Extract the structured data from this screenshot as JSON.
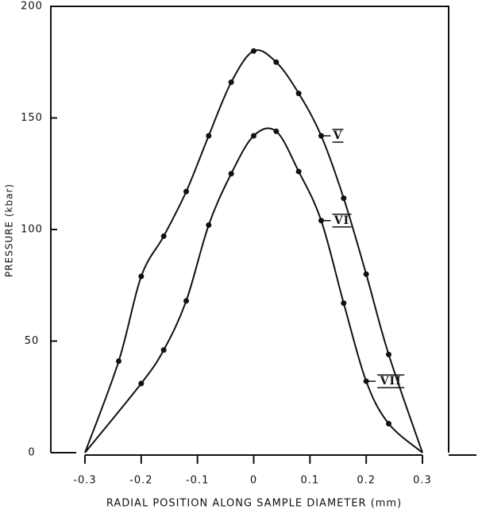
{
  "chart_data": {
    "type": "line",
    "xlabel": "RADIAL POSITION ALONG SAMPLE DIAMETER (mm)",
    "ylabel": "PRESSURE (kbar)",
    "xlim": [
      -0.3,
      0.3
    ],
    "ylim": [
      0,
      200
    ],
    "xticks": [
      -0.3,
      -0.2,
      -0.1,
      0,
      0.1,
      0.2,
      0.3
    ],
    "yticks": [
      0,
      50,
      100,
      150,
      200
    ],
    "series": [
      {
        "color": "#111111",
        "x": [
          -0.3,
          -0.24,
          -0.2,
          -0.16,
          -0.12,
          -0.08,
          -0.04,
          0,
          0.04,
          0.08,
          0.12,
          0.16,
          0.2,
          0.24,
          0.3
        ],
        "values": [
          0,
          41,
          79,
          97,
          117,
          142,
          166,
          180,
          175,
          161,
          142,
          114,
          80,
          44,
          0
        ]
      },
      {
        "color": "#111111",
        "x": [
          -0.3,
          -0.2,
          -0.16,
          -0.12,
          -0.08,
          -0.04,
          0,
          0.04,
          0.08,
          0.12,
          0.16,
          0.2,
          0.24,
          0.3
        ],
        "values": [
          0,
          31,
          46,
          68,
          102,
          125,
          142,
          144,
          126,
          104,
          67,
          32,
          13,
          0
        ]
      }
    ],
    "annotations": [
      {
        "text": "V",
        "x": 0.12,
        "y": 142
      },
      {
        "text": "VI",
        "x": 0.12,
        "y": 104
      },
      {
        "text": "VII",
        "x": 0.2,
        "y": 32
      }
    ]
  }
}
